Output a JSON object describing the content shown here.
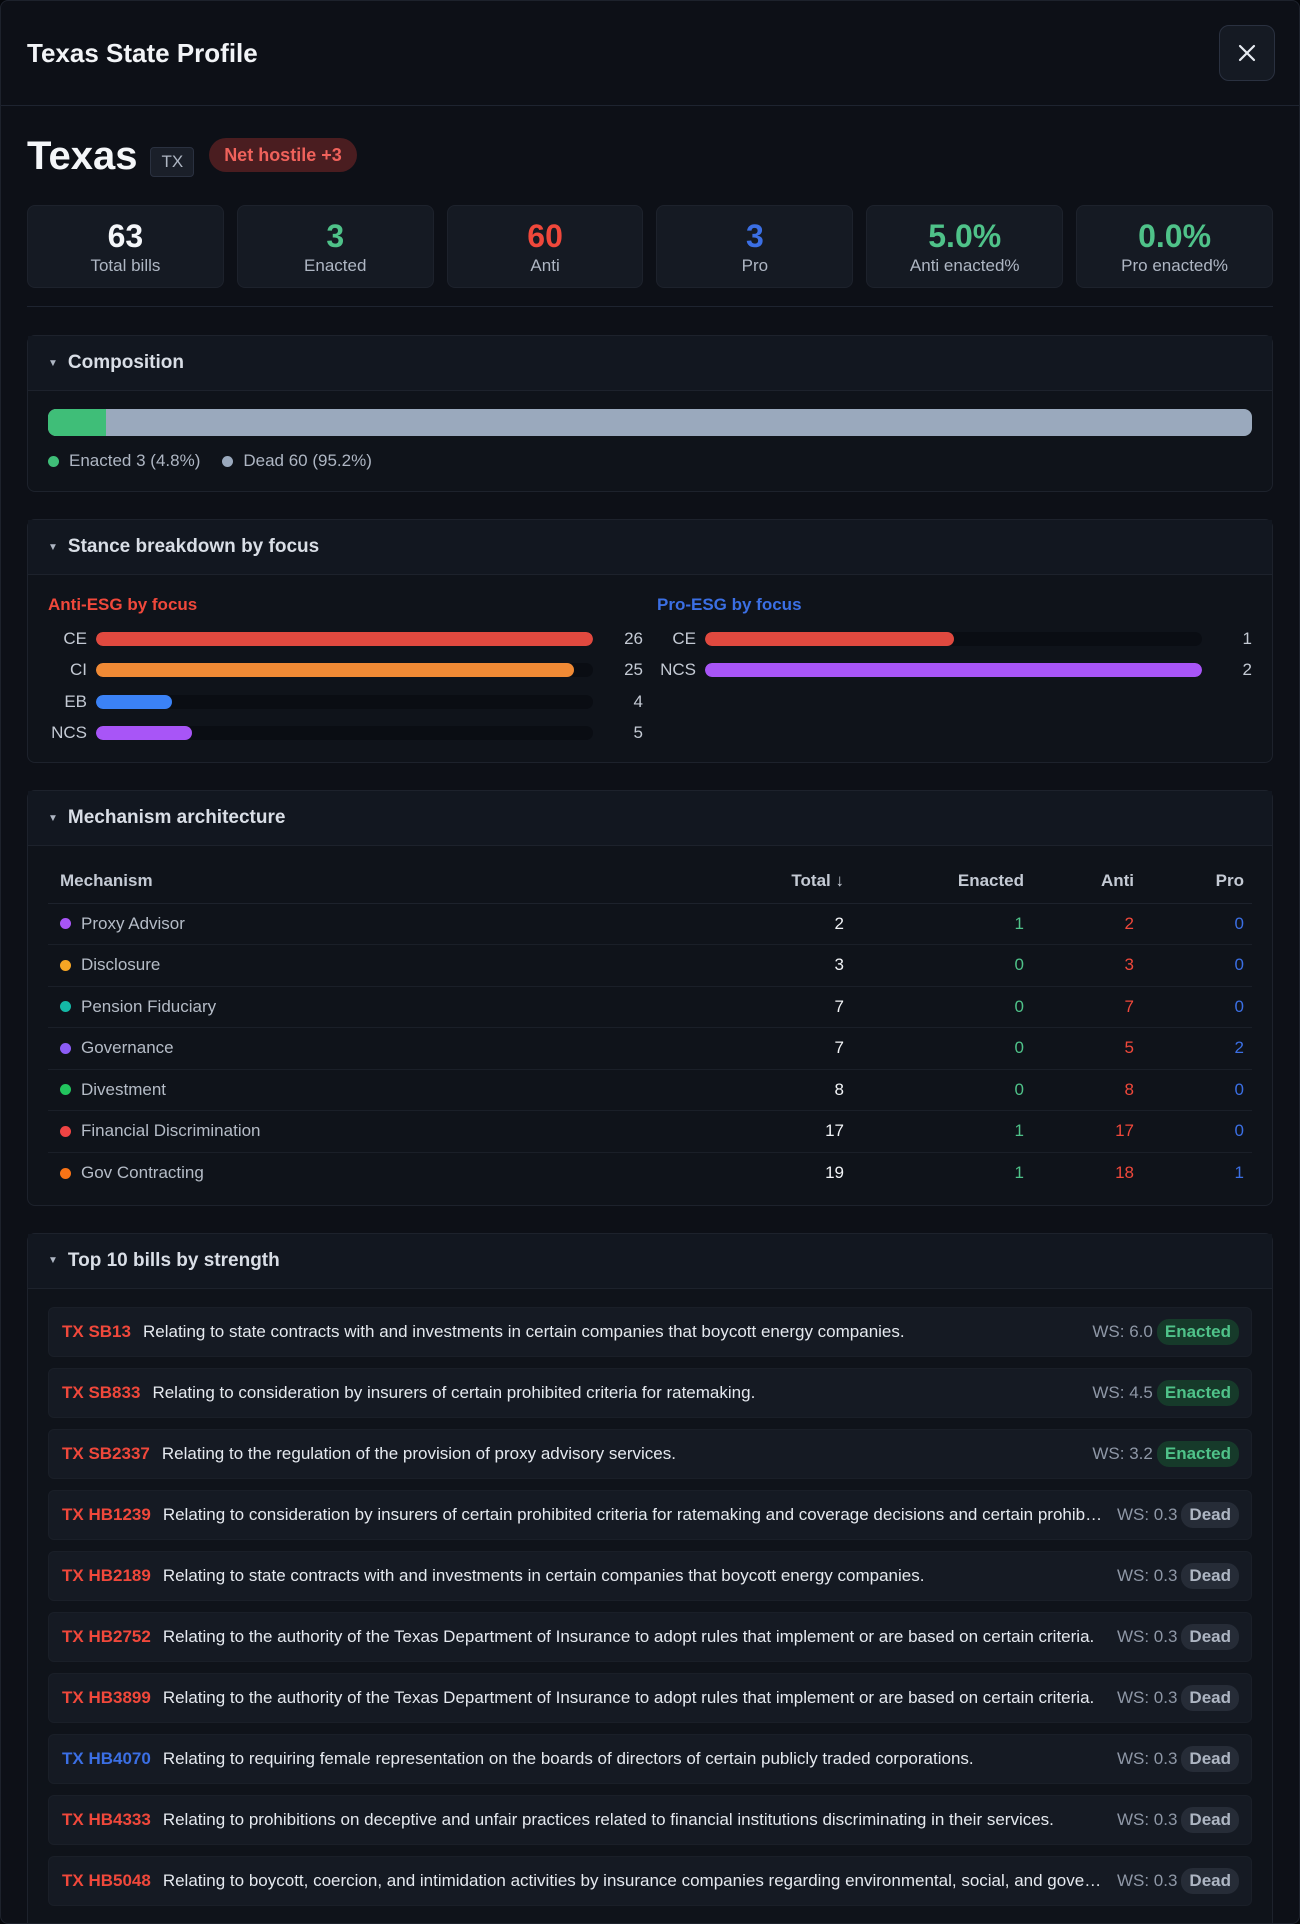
{
  "modal": {
    "title": "Texas State Profile"
  },
  "state": {
    "name": "Texas",
    "code": "TX",
    "net_label": "Net hostile +3"
  },
  "stats": [
    {
      "value": "63",
      "label": "Total bills",
      "color": "#f4f6f9"
    },
    {
      "value": "3",
      "label": "Enacted",
      "color": "#4fc289"
    },
    {
      "value": "60",
      "label": "Anti",
      "color": "#f0483b"
    },
    {
      "value": "3",
      "label": "Pro",
      "color": "#3b6fe4"
    },
    {
      "value": "5.0%",
      "label": "Anti enacted%",
      "color": "#4fc289"
    },
    {
      "value": "0.0%",
      "label": "Pro enacted%",
      "color": "#4fc289"
    }
  ],
  "composition": {
    "title": "Composition",
    "enacted_fraction": 0.048,
    "legend": [
      {
        "label": "Enacted 3 (4.8%)",
        "color": "#3fbe78"
      },
      {
        "label": "Dead 60 (95.2%)",
        "color": "#9aa9bd"
      }
    ]
  },
  "stance": {
    "title": "Stance breakdown by focus",
    "anti": {
      "heading": "Anti-ESG by focus",
      "color": "#f0483b",
      "max": 26,
      "rows": [
        {
          "label": "CE",
          "value": 26,
          "color": "#e0493f"
        },
        {
          "label": "CI",
          "value": 25,
          "color": "#f08a35"
        },
        {
          "label": "EB",
          "value": 4,
          "color": "#3b82f6"
        },
        {
          "label": "NCS",
          "value": 5,
          "color": "#a855f7"
        }
      ]
    },
    "pro": {
      "heading": "Pro-ESG by focus",
      "color": "#3b6fe4",
      "max": 2,
      "rows": [
        {
          "label": "CE",
          "value": 1,
          "color": "#e0493f"
        },
        {
          "label": "NCS",
          "value": 2,
          "color": "#a855f7"
        }
      ]
    }
  },
  "mechanism": {
    "title": "Mechanism architecture",
    "headers": {
      "mechanism": "Mechanism",
      "total": "Total ↓",
      "enacted": "Enacted",
      "anti": "Anti",
      "pro": "Pro"
    },
    "colors": {
      "enacted": "#4fc289",
      "anti": "#f0483b",
      "pro": "#3b6fe4",
      "total": "#f2f4f7"
    },
    "rows": [
      {
        "name": "Proxy Advisor",
        "dot": "#a855f7",
        "total": "2",
        "enacted": "1",
        "anti": "2",
        "pro": "0"
      },
      {
        "name": "Disclosure",
        "dot": "#f5a524",
        "total": "3",
        "enacted": "0",
        "anti": "3",
        "pro": "0"
      },
      {
        "name": "Pension Fiduciary",
        "dot": "#14b8a6",
        "total": "7",
        "enacted": "0",
        "anti": "7",
        "pro": "0"
      },
      {
        "name": "Governance",
        "dot": "#8b5cf6",
        "total": "7",
        "enacted": "0",
        "anti": "5",
        "pro": "2"
      },
      {
        "name": "Divestment",
        "dot": "#22c55e",
        "total": "8",
        "enacted": "0",
        "anti": "8",
        "pro": "0"
      },
      {
        "name": "Financial Discrimination",
        "dot": "#ef4444",
        "total": "17",
        "enacted": "1",
        "anti": "17",
        "pro": "0"
      },
      {
        "name": "Gov Contracting",
        "dot": "#f97316",
        "total": "19",
        "enacted": "1",
        "anti": "18",
        "pro": "1"
      }
    ]
  },
  "top_bills": {
    "title": "Top 10 bills by strength",
    "anti_color": "#f0483b",
    "pro_color": "#3b6fe4",
    "items": [
      {
        "id": "TX SB13",
        "stance": "anti",
        "title": "Relating to state contracts with and investments in certain companies that boycott energy companies.",
        "ws": "WS: 6.0",
        "status": "Enacted"
      },
      {
        "id": "TX SB833",
        "stance": "anti",
        "title": "Relating to consideration by insurers of certain prohibited criteria for ratemaking.",
        "ws": "WS: 4.5",
        "status": "Enacted"
      },
      {
        "id": "TX SB2337",
        "stance": "anti",
        "title": "Relating to the regulation of the provision of proxy advisory services.",
        "ws": "WS: 3.2",
        "status": "Enacted"
      },
      {
        "id": "TX HB1239",
        "stance": "anti",
        "title": "Relating to consideration by insurers of certain prohibited criteria for ratemaking and coverage decisions and certain prohibited actions.",
        "ws": "WS: 0.3",
        "status": "Dead"
      },
      {
        "id": "TX HB2189",
        "stance": "anti",
        "title": "Relating to state contracts with and investments in certain companies that boycott energy companies.",
        "ws": "WS: 0.3",
        "status": "Dead"
      },
      {
        "id": "TX HB2752",
        "stance": "anti",
        "title": "Relating to the authority of the Texas Department of Insurance to adopt rules that implement or are based on certain criteria.",
        "ws": "WS: 0.3",
        "status": "Dead"
      },
      {
        "id": "TX HB3899",
        "stance": "anti",
        "title": "Relating to the authority of the Texas Department of Insurance to adopt rules that implement or are based on certain criteria.",
        "ws": "WS: 0.3",
        "status": "Dead"
      },
      {
        "id": "TX HB4070",
        "stance": "pro",
        "title": "Relating to requiring female representation on the boards of directors of certain publicly traded corporations.",
        "ws": "WS: 0.3",
        "status": "Dead"
      },
      {
        "id": "TX HB4333",
        "stance": "anti",
        "title": "Relating to prohibitions on deceptive and unfair practices related to financial institutions discriminating in their services.",
        "ws": "WS: 0.3",
        "status": "Dead"
      },
      {
        "id": "TX HB5048",
        "stance": "anti",
        "title": "Relating to boycott, coercion, and intimidation activities by insurance companies regarding environmental, social, and governance factors.",
        "ws": "WS: 0.3",
        "status": "Dead"
      }
    ]
  }
}
